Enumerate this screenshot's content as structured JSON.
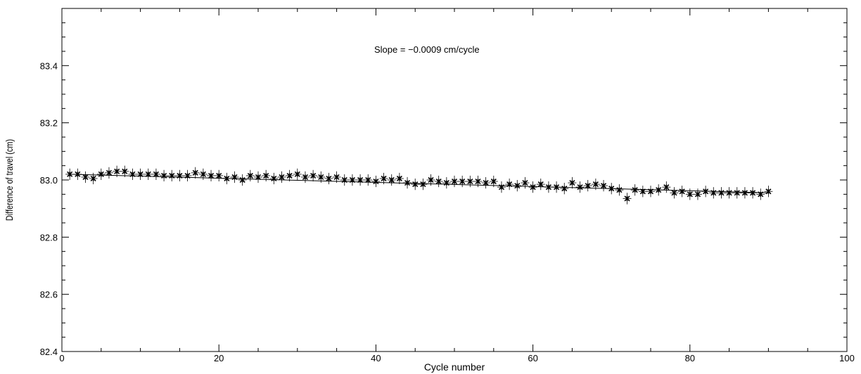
{
  "chart_data": {
    "type": "scatter",
    "annotation": "Slope = −0.0009 cm/cycle",
    "xlabel": "Cycle number",
    "ylabel": "Difference of travel  (cm)",
    "xlim": [
      0,
      100
    ],
    "ylim": [
      82.4,
      83.6
    ],
    "x_ticks": [
      "0",
      "20",
      "40",
      "60",
      "80",
      "100"
    ],
    "y_ticks": [
      "82.4",
      "82.6",
      "82.8",
      "83.0",
      "83.2",
      "83.4"
    ],
    "x_tick_values": [
      0,
      20,
      40,
      60,
      80,
      100
    ],
    "y_tick_values": [
      82.4,
      82.6,
      82.8,
      83.0,
      83.2,
      83.4
    ],
    "grid": false,
    "marker": "asterisk",
    "error_bar": 0.02,
    "fit_line": {
      "x": [
        1,
        90
      ],
      "y": [
        83.02,
        82.955
      ]
    },
    "series": [
      {
        "x": [
          1,
          2,
          3,
          4,
          5,
          6,
          7,
          8,
          9,
          10,
          11,
          12,
          13,
          14,
          15,
          16,
          17,
          18,
          19,
          20,
          21,
          22,
          23,
          24,
          25,
          26,
          27,
          28,
          29,
          30,
          31,
          32,
          33,
          34,
          35,
          36,
          37,
          38,
          39,
          40,
          41,
          42,
          43,
          44,
          45,
          46,
          47,
          48,
          49,
          50,
          51,
          52,
          53,
          54,
          55,
          56,
          57,
          58,
          59,
          60,
          61,
          62,
          63,
          64,
          65,
          66,
          67,
          68,
          69,
          70,
          71,
          72,
          73,
          74,
          75,
          76,
          77,
          78,
          79,
          80,
          81,
          82,
          83,
          84,
          85,
          86,
          87,
          88,
          89,
          90
        ],
        "y": [
          83.02,
          83.02,
          83.01,
          83.005,
          83.02,
          83.025,
          83.03,
          83.03,
          83.02,
          83.02,
          83.02,
          83.02,
          83.015,
          83.015,
          83.015,
          83.015,
          83.025,
          83.02,
          83.015,
          83.015,
          83.005,
          83.01,
          83.0,
          83.015,
          83.01,
          83.015,
          83.005,
          83.01,
          83.015,
          83.02,
          83.01,
          83.015,
          83.01,
          83.005,
          83.01,
          83.0,
          83.0,
          83.0,
          83.0,
          82.995,
          83.005,
          83.0,
          83.005,
          82.99,
          82.985,
          82.985,
          83.0,
          82.995,
          82.99,
          82.995,
          82.995,
          82.995,
          82.995,
          82.99,
          82.995,
          82.975,
          82.985,
          82.98,
          82.99,
          82.975,
          82.985,
          82.975,
          82.975,
          82.97,
          82.99,
          82.975,
          82.98,
          82.985,
          82.98,
          82.97,
          82.965,
          82.935,
          82.965,
          82.96,
          82.96,
          82.965,
          82.975,
          82.955,
          82.96,
          82.95,
          82.95,
          82.96,
          82.955,
          82.955,
          82.955,
          82.955,
          82.955,
          82.955,
          82.95,
          82.96
        ]
      }
    ]
  }
}
